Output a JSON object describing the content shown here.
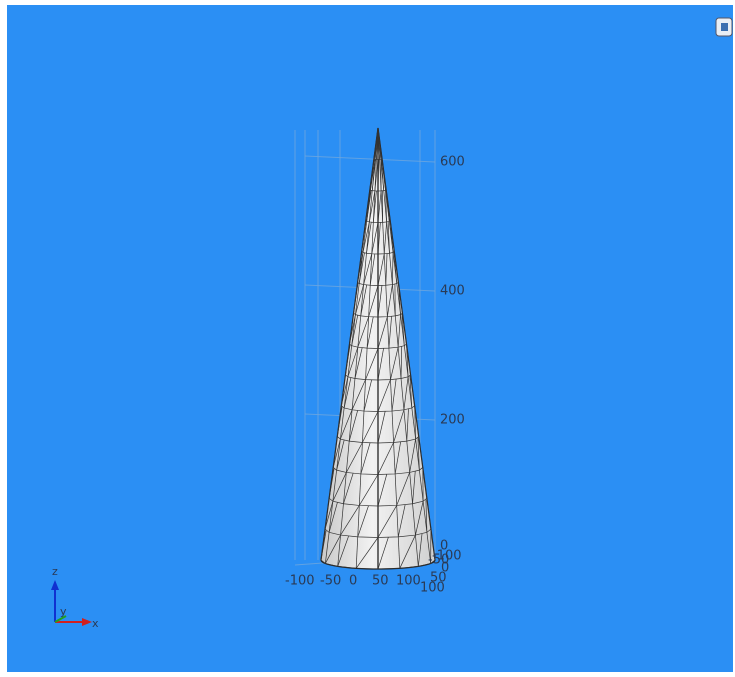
{
  "view": {
    "z_axis_ticks": [
      "600",
      "400",
      "200",
      "0"
    ],
    "x_axis_ticks": [
      "-100",
      "-50",
      "0",
      "50",
      "100"
    ],
    "y_axis_ticks": [
      "100",
      "50",
      "0",
      "-50",
      "-100"
    ],
    "triad": {
      "z": "z",
      "y": "y",
      "x": "x"
    }
  }
}
